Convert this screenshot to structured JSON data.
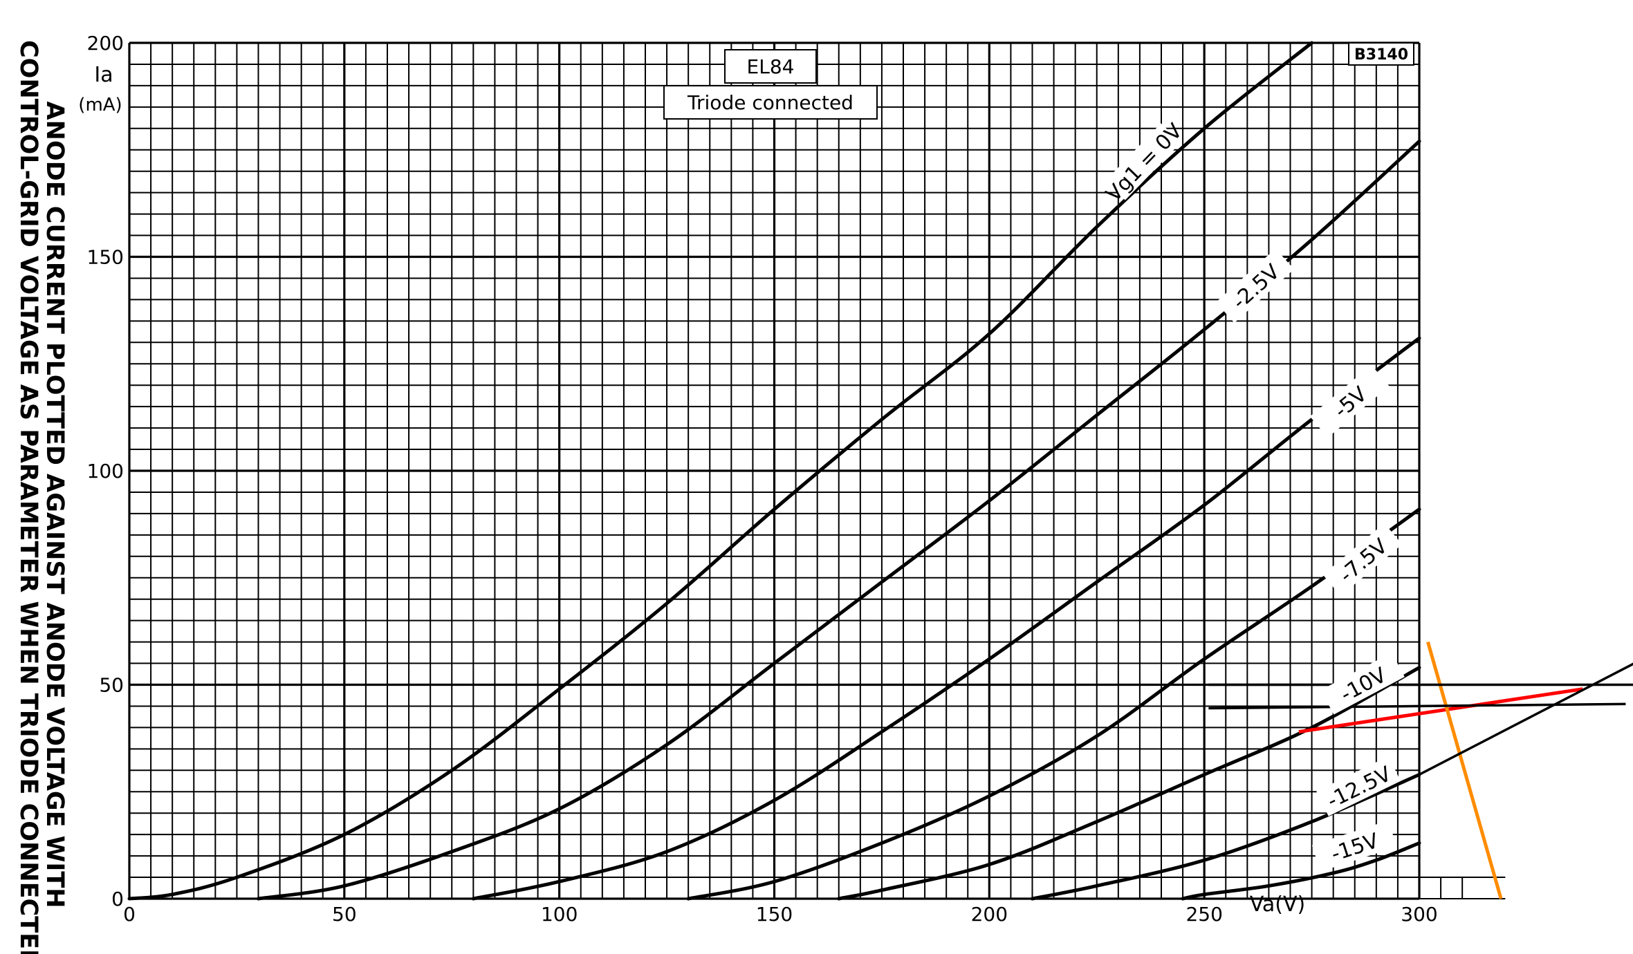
{
  "chart_data": {
    "type": "line",
    "title": "EL84",
    "subtitle": "Triode connected",
    "code": "B3140",
    "side_title_line1": "ANODE CURRENT PLOTTED AGAINST ANODE VOLTAGE WITH",
    "side_title_line2": "CONTROL-GRID VOLTAGE AS PARAMETER WHEN TRIODE CONNECTED",
    "xlabel": "Va(V)",
    "ylabel_line1": "Ia",
    "ylabel_line2": "(mA)",
    "xlim": [
      0,
      300
    ],
    "ylim": [
      0,
      200
    ],
    "grid": true,
    "x_ticks": [
      {
        "value": 0,
        "label": "0"
      },
      {
        "value": 50,
        "label": "50"
      },
      {
        "value": 100,
        "label": "100"
      },
      {
        "value": 150,
        "label": "150"
      },
      {
        "value": 200,
        "label": "200"
      },
      {
        "value": 250,
        "label": "250"
      },
      {
        "value": 300,
        "label": "300"
      }
    ],
    "y_ticks": [
      {
        "value": 0,
        "label": "0"
      },
      {
        "value": 50,
        "label": "50"
      },
      {
        "value": 100,
        "label": "100"
      },
      {
        "value": 150,
        "label": "150"
      },
      {
        "value": 200,
        "label": "200"
      }
    ],
    "series": [
      {
        "name": "Vg1 = 0V",
        "label_at": [
          236,
          172
        ],
        "label_angle": -46,
        "x": [
          0,
          10,
          25,
          50,
          75,
          100,
          125,
          150,
          175,
          200,
          225,
          250,
          275
        ],
        "y": [
          0,
          1,
          5,
          15,
          30,
          49,
          69,
          91,
          112,
          132,
          157,
          180,
          200
        ]
      },
      {
        "name": "-2.5V",
        "label_at": [
          262,
          143
        ],
        "label_angle": -42,
        "x": [
          30,
          50,
          75,
          100,
          125,
          150,
          175,
          200,
          225,
          250,
          275,
          300
        ],
        "y": [
          0,
          3,
          11,
          21,
          36,
          55,
          74,
          93,
          113,
          133,
          154,
          177
        ]
      },
      {
        "name": "-5V",
        "label_at": [
          284,
          116
        ],
        "label_angle": -40,
        "x": [
          80,
          100,
          125,
          150,
          175,
          200,
          225,
          250,
          275,
          300
        ],
        "y": [
          0,
          4,
          11,
          23,
          39,
          56,
          74,
          92,
          112,
          131
        ]
      },
      {
        "name": "-7.5V",
        "label_at": [
          287,
          79
        ],
        "label_angle": -40,
        "x": [
          130,
          150,
          175,
          200,
          225,
          250,
          275,
          300
        ],
        "y": [
          0,
          4,
          13,
          24,
          38,
          56,
          73,
          91
        ]
      },
      {
        "name": "-10V",
        "label_at": [
          287,
          50
        ],
        "label_angle": -28,
        "x": [
          165,
          175,
          200,
          225,
          250,
          275,
          300
        ],
        "y": [
          0,
          2,
          8,
          18,
          29,
          40,
          54
        ]
      },
      {
        "name": "-12.5V",
        "label_at": [
          286,
          26
        ],
        "label_angle": -26,
        "x": [
          210,
          225,
          250,
          275,
          300
        ],
        "y": [
          0,
          3,
          9,
          18,
          29
        ]
      },
      {
        "name": "-15V",
        "label_at": [
          285,
          12
        ],
        "label_angle": -18,
        "x": [
          245,
          250,
          265,
          280,
          290,
          300
        ],
        "y": [
          0,
          1,
          3,
          6,
          9,
          13
        ]
      }
    ],
    "annotations": [
      {
        "color": "#ff0000",
        "x": [
          272,
          338
        ],
        "y": [
          39,
          49
        ]
      },
      {
        "color": "#ff8c00",
        "x": [
          302,
          319
        ],
        "y": [
          60,
          0
        ]
      },
      {
        "color": "#000000",
        "x": [
          300,
          350
        ],
        "y": [
          29,
          55
        ]
      },
      {
        "color": "#000000",
        "x": [
          251,
          350
        ],
        "y": [
          50,
          50
        ]
      },
      {
        "color": "#000000",
        "x": [
          251,
          348
        ],
        "y": [
          44.5,
          45.5
        ]
      }
    ]
  }
}
